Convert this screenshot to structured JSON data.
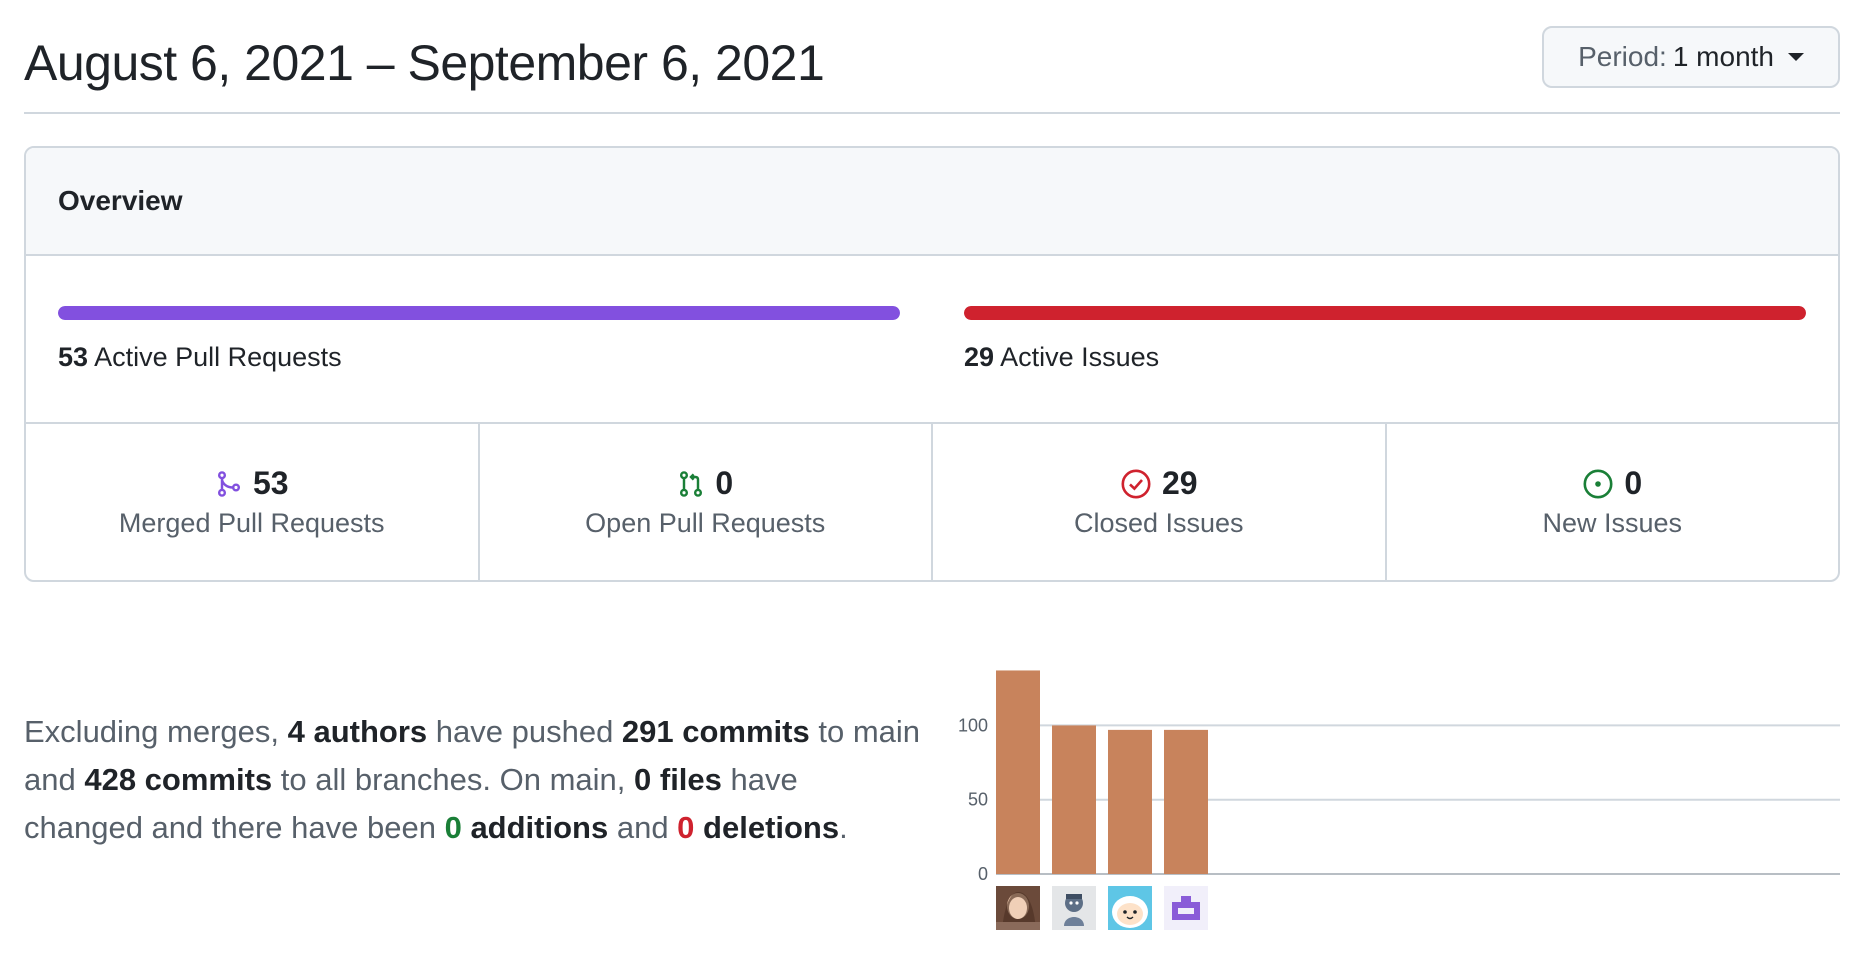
{
  "header": {
    "date_range": "August 6, 2021 – September 6, 2021",
    "period_label": "Period:",
    "period_value": "1 month"
  },
  "overview": {
    "title": "Overview",
    "active_prs": {
      "count": "53",
      "label": "Active Pull Requests",
      "fill_fraction": 1.0,
      "color": "#8250df"
    },
    "active_issues": {
      "count": "29",
      "label": "Active Issues",
      "fill_fraction": 1.0,
      "color": "#cf222e"
    },
    "stats": [
      {
        "icon": "merged-pr-icon",
        "count": "53",
        "label": "Merged Pull Requests",
        "color": "#8250df"
      },
      {
        "icon": "open-pr-icon",
        "count": "0",
        "label": "Open Pull Requests",
        "color": "#1a7f37"
      },
      {
        "icon": "closed-issue-icon",
        "count": "29",
        "label": "Closed Issues",
        "color": "#cf222e"
      },
      {
        "icon": "new-issue-icon",
        "count": "0",
        "label": "New Issues",
        "color": "#1a7f37"
      }
    ]
  },
  "summary": {
    "t1": "Excluding merges, ",
    "authors": "4 authors",
    "t2": " have pushed ",
    "commits_main": "291 commits",
    "t3": " to main and ",
    "commits_all": "428 commits",
    "t4": " to all branches. On main, ",
    "files": "0 files",
    "t5": " have changed and there have been ",
    "additions_num": "0",
    "additions_word": " additions",
    "t6": " and ",
    "deletions_num": "0",
    "deletions_word": " deletions",
    "t7": "."
  },
  "chart_data": {
    "type": "bar",
    "categories": [
      "author-1",
      "author-2",
      "author-3",
      "author-4"
    ],
    "values": [
      137,
      100,
      97,
      97
    ],
    "yticks": [
      0,
      50,
      100
    ],
    "ylim": [
      0,
      140
    ],
    "bar_color": "#c8835c",
    "grid": true
  }
}
